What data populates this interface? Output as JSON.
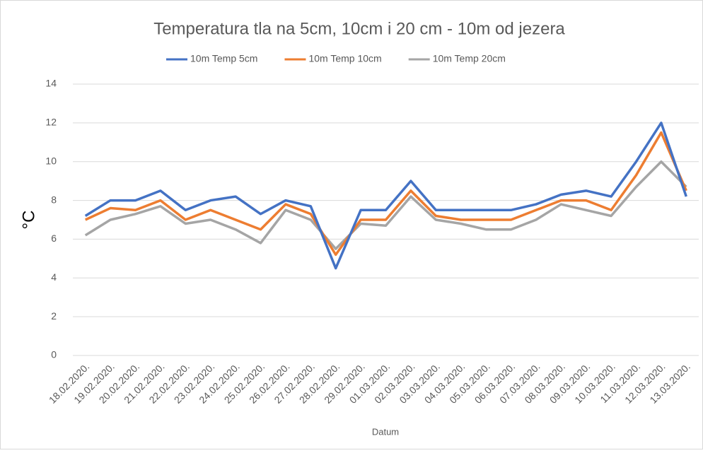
{
  "chart_data": {
    "type": "line",
    "title": "Temperatura tla na 5cm, 10cm i 20 cm - 10m od jezera",
    "x_label": "Datum",
    "y_label": "°C",
    "categories": [
      "18.02.2020.",
      "19.02.2020.",
      "20.02.2020.",
      "21.02.2020.",
      "22.02.2020.",
      "23.02.2020.",
      "24.02.2020.",
      "25.02.2020.",
      "26.02.2020.",
      "27.02.2020.",
      "28.02.2020.",
      "29.02.2020.",
      "01.03.2020.",
      "02.03.2020.",
      "03.03.2020.",
      "04.03.2020.",
      "05.03.2020.",
      "06.03.2020.",
      "07.03.2020.",
      "08.03.2020.",
      "09.03.2020.",
      "10.03.2020.",
      "11.03.2020.",
      "12.03.2020.",
      "13.03.2020."
    ],
    "series": [
      {
        "name": "10m Temp 5cm",
        "color": "#4472c4",
        "values": [
          7.2,
          8,
          8,
          8.5,
          7.5,
          8,
          8.2,
          7.3,
          8,
          7.7,
          4.5,
          7.5,
          7.5,
          9,
          7.5,
          7.5,
          7.5,
          7.5,
          7.8,
          8.3,
          8.5,
          8.2,
          10,
          12,
          8.2
        ]
      },
      {
        "name": "10m Temp 10cm",
        "color": "#ed7d31",
        "values": [
          7,
          7.6,
          7.5,
          8,
          7,
          7.5,
          7,
          6.5,
          7.8,
          7.3,
          5.2,
          7,
          7,
          8.5,
          7.2,
          7,
          7,
          7,
          7.5,
          8,
          8,
          7.5,
          9.3,
          11.5,
          8.5
        ]
      },
      {
        "name": "10m Temp 20cm",
        "color": "#a5a5a5",
        "values": [
          6.2,
          7,
          7.3,
          7.7,
          6.8,
          7,
          6.5,
          5.8,
          7.5,
          7,
          5.5,
          6.8,
          6.7,
          8.2,
          7,
          6.8,
          6.5,
          6.5,
          7,
          7.8,
          7.5,
          7.2,
          8.7,
          10,
          8.7
        ]
      }
    ],
    "ylim": [
      0,
      14
    ],
    "yticks": [
      0,
      2,
      4,
      6,
      8,
      10,
      12,
      14
    ],
    "grid": true,
    "legend": "top"
  }
}
